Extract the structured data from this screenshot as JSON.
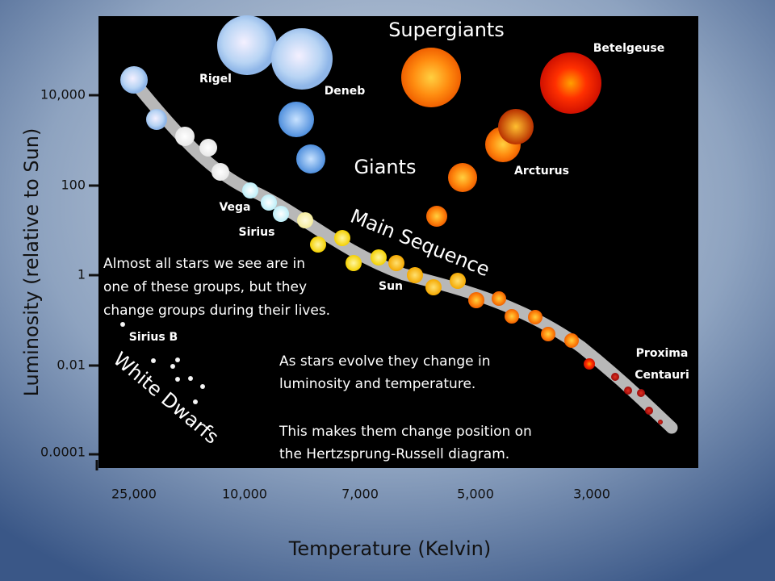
{
  "title": "Supergiants",
  "giants_label": "Giants",
  "main_sequence_label": "Main Sequence",
  "white_dwarfs_label": "White Dwarfs",
  "y_axis": {
    "label": "Luminosity (relative to Sun)",
    "ticks": [
      "10,000",
      "100",
      "1",
      "0.01",
      "0.0001"
    ]
  },
  "x_axis": {
    "label": "Temperature (Kelvin)",
    "ticks": [
      "25,000",
      "10,000",
      "7,000",
      "5,000",
      "3,000"
    ]
  },
  "star_names": {
    "rigel": "Rigel",
    "deneb": "Deneb",
    "betelgeuse": "Betelgeuse",
    "arcturus": "Arcturus",
    "vega": "Vega",
    "sirius": "Sirius",
    "sun": "Sun",
    "sirius_b": "Sirius B",
    "proxima": [
      "Proxima",
      "Centauri"
    ]
  },
  "notes": {
    "groups": [
      "Almost all stars we see are in",
      "one of these groups, but they",
      "change groups during their lives."
    ],
    "evolve": [
      "As stars evolve they change in",
      "luminosity and temperature."
    ],
    "position": [
      "This makes them change position on",
      "the Hertzsprung-Russell diagram."
    ]
  }
}
